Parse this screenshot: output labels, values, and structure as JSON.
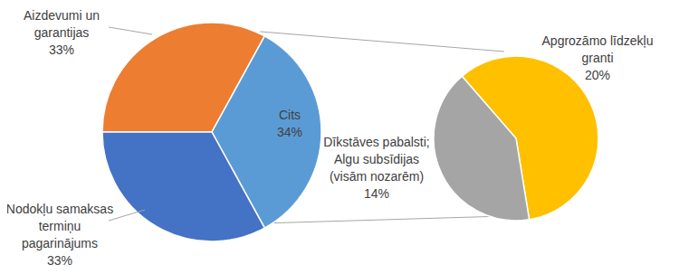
{
  "chart_data": [
    {
      "type": "pie",
      "categories": [
        "Aizdevumi un garantijas",
        "Cits",
        "Nodokļu samaksas termiņu pagarinājums"
      ],
      "values": [
        33,
        34,
        33
      ],
      "value_labels": [
        "33%",
        "34%",
        "33%"
      ],
      "colors": [
        "#ed7d31",
        "#5b9bd5",
        "#4472c4"
      ],
      "data_labels": true
    },
    {
      "type": "pie",
      "categories": [
        "Apgrozāmo līdzekļu granti",
        "Dīkstāves pabalsti; Algu subsīdijas (visām nozarēm)"
      ],
      "values": [
        20,
        14
      ],
      "value_labels": [
        "20%",
        "14%"
      ],
      "colors": [
        "#ffc000",
        "#a5a5a5"
      ],
      "data_labels": true
    }
  ]
}
